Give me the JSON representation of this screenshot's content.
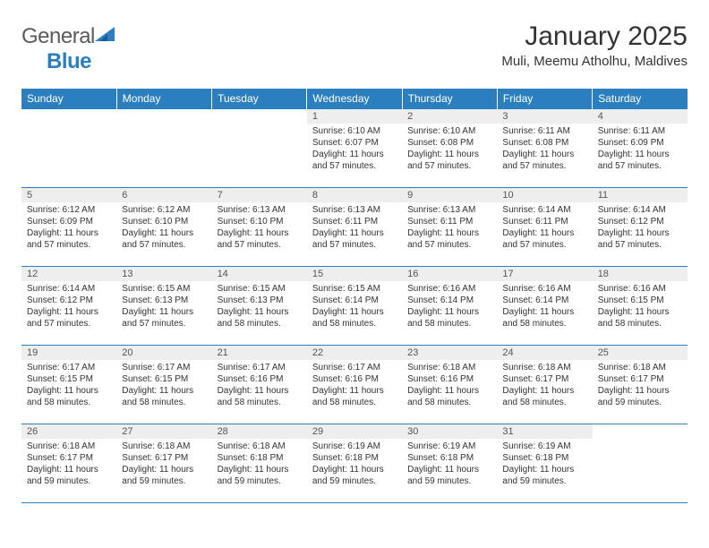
{
  "logo": {
    "text_general": "General",
    "text_blue": "Blue"
  },
  "header": {
    "title": "January 2025",
    "location": "Muli, Meemu Atholhu, Maldives"
  },
  "colors": {
    "header_bg": "#2b7fbf",
    "header_text": "#ffffff",
    "daynum_bg": "#eeeeee",
    "border": "#2b7fbf",
    "body_text": "#333333"
  },
  "columns": [
    "Sunday",
    "Monday",
    "Tuesday",
    "Wednesday",
    "Thursday",
    "Friday",
    "Saturday"
  ],
  "weeks": [
    [
      {
        "n": "",
        "sr": "",
        "ss": "",
        "dl": ""
      },
      {
        "n": "",
        "sr": "",
        "ss": "",
        "dl": ""
      },
      {
        "n": "",
        "sr": "",
        "ss": "",
        "dl": ""
      },
      {
        "n": "1",
        "sr": "Sunrise: 6:10 AM",
        "ss": "Sunset: 6:07 PM",
        "dl": "Daylight: 11 hours and 57 minutes."
      },
      {
        "n": "2",
        "sr": "Sunrise: 6:10 AM",
        "ss": "Sunset: 6:08 PM",
        "dl": "Daylight: 11 hours and 57 minutes."
      },
      {
        "n": "3",
        "sr": "Sunrise: 6:11 AM",
        "ss": "Sunset: 6:08 PM",
        "dl": "Daylight: 11 hours and 57 minutes."
      },
      {
        "n": "4",
        "sr": "Sunrise: 6:11 AM",
        "ss": "Sunset: 6:09 PM",
        "dl": "Daylight: 11 hours and 57 minutes."
      }
    ],
    [
      {
        "n": "5",
        "sr": "Sunrise: 6:12 AM",
        "ss": "Sunset: 6:09 PM",
        "dl": "Daylight: 11 hours and 57 minutes."
      },
      {
        "n": "6",
        "sr": "Sunrise: 6:12 AM",
        "ss": "Sunset: 6:10 PM",
        "dl": "Daylight: 11 hours and 57 minutes."
      },
      {
        "n": "7",
        "sr": "Sunrise: 6:13 AM",
        "ss": "Sunset: 6:10 PM",
        "dl": "Daylight: 11 hours and 57 minutes."
      },
      {
        "n": "8",
        "sr": "Sunrise: 6:13 AM",
        "ss": "Sunset: 6:11 PM",
        "dl": "Daylight: 11 hours and 57 minutes."
      },
      {
        "n": "9",
        "sr": "Sunrise: 6:13 AM",
        "ss": "Sunset: 6:11 PM",
        "dl": "Daylight: 11 hours and 57 minutes."
      },
      {
        "n": "10",
        "sr": "Sunrise: 6:14 AM",
        "ss": "Sunset: 6:11 PM",
        "dl": "Daylight: 11 hours and 57 minutes."
      },
      {
        "n": "11",
        "sr": "Sunrise: 6:14 AM",
        "ss": "Sunset: 6:12 PM",
        "dl": "Daylight: 11 hours and 57 minutes."
      }
    ],
    [
      {
        "n": "12",
        "sr": "Sunrise: 6:14 AM",
        "ss": "Sunset: 6:12 PM",
        "dl": "Daylight: 11 hours and 57 minutes."
      },
      {
        "n": "13",
        "sr": "Sunrise: 6:15 AM",
        "ss": "Sunset: 6:13 PM",
        "dl": "Daylight: 11 hours and 57 minutes."
      },
      {
        "n": "14",
        "sr": "Sunrise: 6:15 AM",
        "ss": "Sunset: 6:13 PM",
        "dl": "Daylight: 11 hours and 58 minutes."
      },
      {
        "n": "15",
        "sr": "Sunrise: 6:15 AM",
        "ss": "Sunset: 6:14 PM",
        "dl": "Daylight: 11 hours and 58 minutes."
      },
      {
        "n": "16",
        "sr": "Sunrise: 6:16 AM",
        "ss": "Sunset: 6:14 PM",
        "dl": "Daylight: 11 hours and 58 minutes."
      },
      {
        "n": "17",
        "sr": "Sunrise: 6:16 AM",
        "ss": "Sunset: 6:14 PM",
        "dl": "Daylight: 11 hours and 58 minutes."
      },
      {
        "n": "18",
        "sr": "Sunrise: 6:16 AM",
        "ss": "Sunset: 6:15 PM",
        "dl": "Daylight: 11 hours and 58 minutes."
      }
    ],
    [
      {
        "n": "19",
        "sr": "Sunrise: 6:17 AM",
        "ss": "Sunset: 6:15 PM",
        "dl": "Daylight: 11 hours and 58 minutes."
      },
      {
        "n": "20",
        "sr": "Sunrise: 6:17 AM",
        "ss": "Sunset: 6:15 PM",
        "dl": "Daylight: 11 hours and 58 minutes."
      },
      {
        "n": "21",
        "sr": "Sunrise: 6:17 AM",
        "ss": "Sunset: 6:16 PM",
        "dl": "Daylight: 11 hours and 58 minutes."
      },
      {
        "n": "22",
        "sr": "Sunrise: 6:17 AM",
        "ss": "Sunset: 6:16 PM",
        "dl": "Daylight: 11 hours and 58 minutes."
      },
      {
        "n": "23",
        "sr": "Sunrise: 6:18 AM",
        "ss": "Sunset: 6:16 PM",
        "dl": "Daylight: 11 hours and 58 minutes."
      },
      {
        "n": "24",
        "sr": "Sunrise: 6:18 AM",
        "ss": "Sunset: 6:17 PM",
        "dl": "Daylight: 11 hours and 58 minutes."
      },
      {
        "n": "25",
        "sr": "Sunrise: 6:18 AM",
        "ss": "Sunset: 6:17 PM",
        "dl": "Daylight: 11 hours and 59 minutes."
      }
    ],
    [
      {
        "n": "26",
        "sr": "Sunrise: 6:18 AM",
        "ss": "Sunset: 6:17 PM",
        "dl": "Daylight: 11 hours and 59 minutes."
      },
      {
        "n": "27",
        "sr": "Sunrise: 6:18 AM",
        "ss": "Sunset: 6:17 PM",
        "dl": "Daylight: 11 hours and 59 minutes."
      },
      {
        "n": "28",
        "sr": "Sunrise: 6:18 AM",
        "ss": "Sunset: 6:18 PM",
        "dl": "Daylight: 11 hours and 59 minutes."
      },
      {
        "n": "29",
        "sr": "Sunrise: 6:19 AM",
        "ss": "Sunset: 6:18 PM",
        "dl": "Daylight: 11 hours and 59 minutes."
      },
      {
        "n": "30",
        "sr": "Sunrise: 6:19 AM",
        "ss": "Sunset: 6:18 PM",
        "dl": "Daylight: 11 hours and 59 minutes."
      },
      {
        "n": "31",
        "sr": "Sunrise: 6:19 AM",
        "ss": "Sunset: 6:18 PM",
        "dl": "Daylight: 11 hours and 59 minutes."
      },
      {
        "n": "",
        "sr": "",
        "ss": "",
        "dl": ""
      }
    ]
  ]
}
